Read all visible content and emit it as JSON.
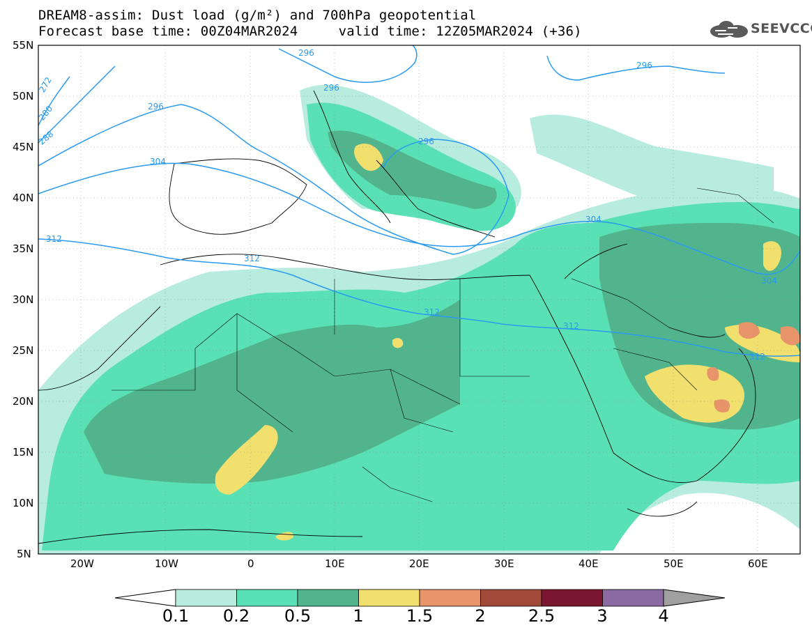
{
  "title": {
    "line1": "DREAM8-assim: Dust load (g/m²) and 700hPa geopotential",
    "line2": "Forecast base time: 00Z04MAR2024     valid time: 12Z05MAR2024 (+36)"
  },
  "logo": {
    "text": "SEEVCCC",
    "icon": "cloud-icon"
  },
  "axes": {
    "lat_labels": [
      "55N",
      "50N",
      "45N",
      "40N",
      "35N",
      "30N",
      "25N",
      "20N",
      "15N",
      "10N",
      "5N"
    ],
    "lon_labels": [
      "20W",
      "10W",
      "0",
      "10E",
      "20E",
      "30E",
      "40E",
      "50E",
      "60E"
    ],
    "lat_range": [
      5,
      55
    ],
    "lon_range": [
      -25,
      65
    ]
  },
  "contour_labels": [
    "296",
    "296",
    "296",
    "296",
    "296",
    "272",
    "280",
    "288",
    "304",
    "304",
    "304",
    "312",
    "312",
    "312",
    "312",
    "312"
  ],
  "colorbar": {
    "labels": [
      "0.1",
      "0.2",
      "0.5",
      "1",
      "1.5",
      "2",
      "2.5",
      "3",
      "4"
    ],
    "colors": [
      "#b8ecdf",
      "#5ae0b5",
      "#52b48d",
      "#f2e06e",
      "#e8946a",
      "#a14a3a",
      "#7a1630",
      "#8a6aa0"
    ],
    "under_color": "#ffffff",
    "over_color": "#a0a0a0"
  },
  "chart_data": {
    "type": "heatmap",
    "title": "DREAM8-assim: Dust load (g/m²) and 700hPa geopotential",
    "subtitle": "Forecast base time: 00Z04MAR2024     valid time: 12Z05MAR2024 (+36)",
    "x_ticks": [
      "20W",
      "10W",
      "0",
      "10E",
      "20E",
      "30E",
      "40E",
      "50E",
      "60E"
    ],
    "y_ticks": [
      "55N",
      "50N",
      "45N",
      "40N",
      "35N",
      "30N",
      "25N",
      "20N",
      "15N",
      "10N",
      "5N"
    ],
    "levels": [
      0.1,
      0.2,
      0.5,
      1,
      1.5,
      2,
      2.5,
      3,
      4
    ],
    "contour_levels": [
      272,
      280,
      288,
      296,
      304,
      312
    ]
  }
}
